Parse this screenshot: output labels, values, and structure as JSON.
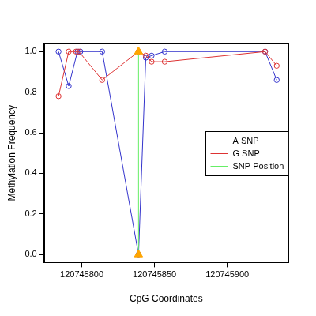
{
  "chart_data": {
    "type": "line",
    "x_label": "CpG Coordinates",
    "y_label": "Methylation Frequency",
    "xlim": [
      120745774,
      120745942
    ],
    "ylim": [
      -0.04,
      1.04
    ],
    "xticks": [
      120745800,
      120745850,
      120745900
    ],
    "yticks": [
      {
        "value": 0,
        "label": "0.0"
      },
      {
        "value": 0.2,
        "label": "0.2"
      },
      {
        "value": 0.4,
        "label": "0.4"
      },
      {
        "value": 0.6,
        "label": "0.6"
      },
      {
        "value": 0.8,
        "label": "0.8"
      },
      {
        "value": 1,
        "label": "1.0"
      }
    ],
    "grid": false,
    "legend": "right",
    "series": [
      {
        "name": "A SNP",
        "color": "#3333cc",
        "marker": "circle",
        "line_style": "solid",
        "x": [
          120745784,
          120745791,
          120745797,
          120745799,
          120745814,
          120745839,
          120745844,
          120745848,
          120745857,
          120745926,
          120745934
        ],
        "values": [
          1.0,
          0.83,
          1.0,
          1.0,
          1.0,
          0.0,
          0.97,
          0.98,
          1.0,
          1.0,
          0.86
        ]
      },
      {
        "name": "G SNP",
        "color": "#dd3333",
        "marker": "circle",
        "line_style": "solid",
        "x": [
          120745784,
          120745791,
          120745796,
          120745798,
          120745814,
          120745839,
          120745844,
          120745848,
          120745857,
          120745926,
          120745934
        ],
        "values": [
          0.78,
          1.0,
          1.0,
          1.0,
          0.86,
          1.0,
          0.98,
          0.95,
          0.95,
          1.0,
          0.93
        ]
      },
      {
        "name": "SNP Position",
        "color": "#66ee66",
        "colors": [
          "#ffa500",
          "#ffa500"
        ],
        "marker": "triangle",
        "line_style": "solid",
        "x": [
          120745839,
          120745839
        ],
        "values": [
          0,
          1
        ]
      }
    ]
  }
}
